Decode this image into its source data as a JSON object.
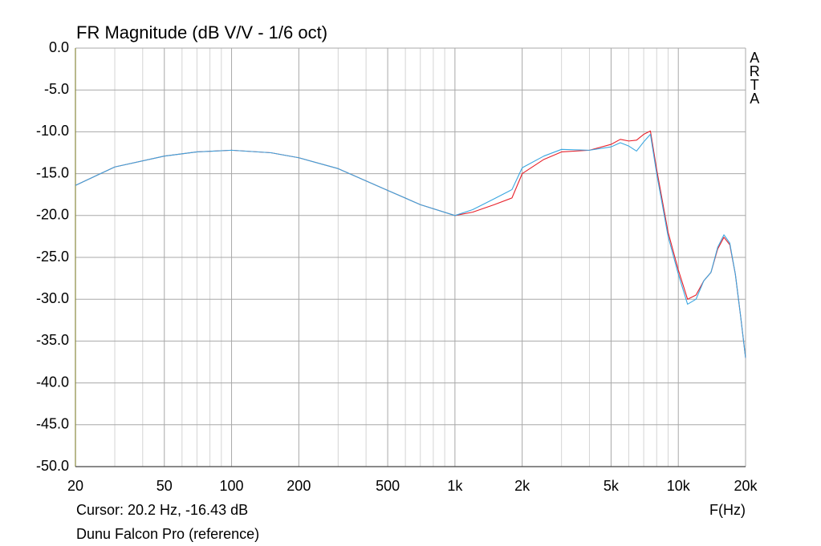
{
  "chart_data": {
    "type": "line",
    "title": "FR Magnitude (dB V/V - 1/6 oct)",
    "watermark": "ARTA",
    "cursor": "Cursor: 20.2 Hz, -16.43 dB",
    "x_label": "F(Hz)",
    "caption": "Dunu Falcon Pro (reference)",
    "x_log": true,
    "grid": true,
    "xlim": [
      20,
      20000
    ],
    "xticks": [
      20,
      50,
      100,
      200,
      500,
      {
        "value": 1000,
        "label": "1k"
      },
      {
        "value": 2000,
        "label": "2k"
      },
      {
        "value": 5000,
        "label": "5k"
      },
      {
        "value": 10000,
        "label": "10k"
      },
      {
        "value": 20000,
        "label": "20k"
      }
    ],
    "x_minor_grid": [
      30,
      40,
      60,
      70,
      80,
      90,
      300,
      400,
      600,
      700,
      800,
      900,
      3000,
      4000,
      6000,
      7000,
      8000,
      9000
    ],
    "ylim": [
      -50,
      0
    ],
    "yticks": [
      {
        "value": 0,
        "label": "0.0"
      },
      {
        "value": -5,
        "label": "-5.0"
      },
      {
        "value": -10,
        "label": "-10.0"
      },
      {
        "value": -15,
        "label": "-15.0"
      },
      {
        "value": -20,
        "label": "-20.0"
      },
      {
        "value": -25,
        "label": "-25.0"
      },
      {
        "value": -30,
        "label": "-30.0"
      },
      {
        "value": -35,
        "label": "-35.0"
      },
      {
        "value": -40,
        "label": "-40.0"
      },
      {
        "value": -45,
        "label": "-45.0"
      },
      {
        "value": -50,
        "label": "-50.0"
      }
    ],
    "x": [
      20,
      30,
      50,
      70,
      100,
      150,
      200,
      300,
      500,
      700,
      1000,
      1200,
      1500,
      1800,
      2000,
      2500,
      3000,
      4000,
      5000,
      5500,
      6000,
      6500,
      7000,
      7500,
      8000,
      9000,
      10000,
      11000,
      12000,
      13000,
      14000,
      15000,
      16000,
      17000,
      18000,
      19000,
      20000
    ],
    "series": [
      {
        "color": "#e8202a",
        "values": [
          -16.4,
          -14.2,
          -12.9,
          -12.4,
          -12.2,
          -12.5,
          -13.1,
          -14.4,
          -17.0,
          -18.7,
          -20.0,
          -19.6,
          -18.7,
          -17.9,
          -15.0,
          -13.3,
          -12.4,
          -12.2,
          -11.5,
          -10.9,
          -11.1,
          -11.0,
          -10.3,
          -9.9,
          -14.5,
          -22.0,
          -26.5,
          -30.0,
          -29.5,
          -27.8,
          -26.8,
          -24.0,
          -22.6,
          -23.5,
          -27.0,
          -32.0,
          -37.0
        ]
      },
      {
        "color": "#3aa6e0",
        "values": [
          -16.4,
          -14.2,
          -12.9,
          -12.4,
          -12.2,
          -12.5,
          -13.1,
          -14.4,
          -17.0,
          -18.7,
          -20.0,
          -19.3,
          -18.0,
          -16.9,
          -14.3,
          -12.9,
          -12.1,
          -12.2,
          -11.8,
          -11.3,
          -11.7,
          -12.3,
          -11.2,
          -10.3,
          -15.0,
          -22.5,
          -27.0,
          -30.6,
          -30.0,
          -27.8,
          -26.8,
          -23.8,
          -22.3,
          -23.3,
          -27.0,
          -32.0,
          -37.0
        ]
      }
    ]
  }
}
